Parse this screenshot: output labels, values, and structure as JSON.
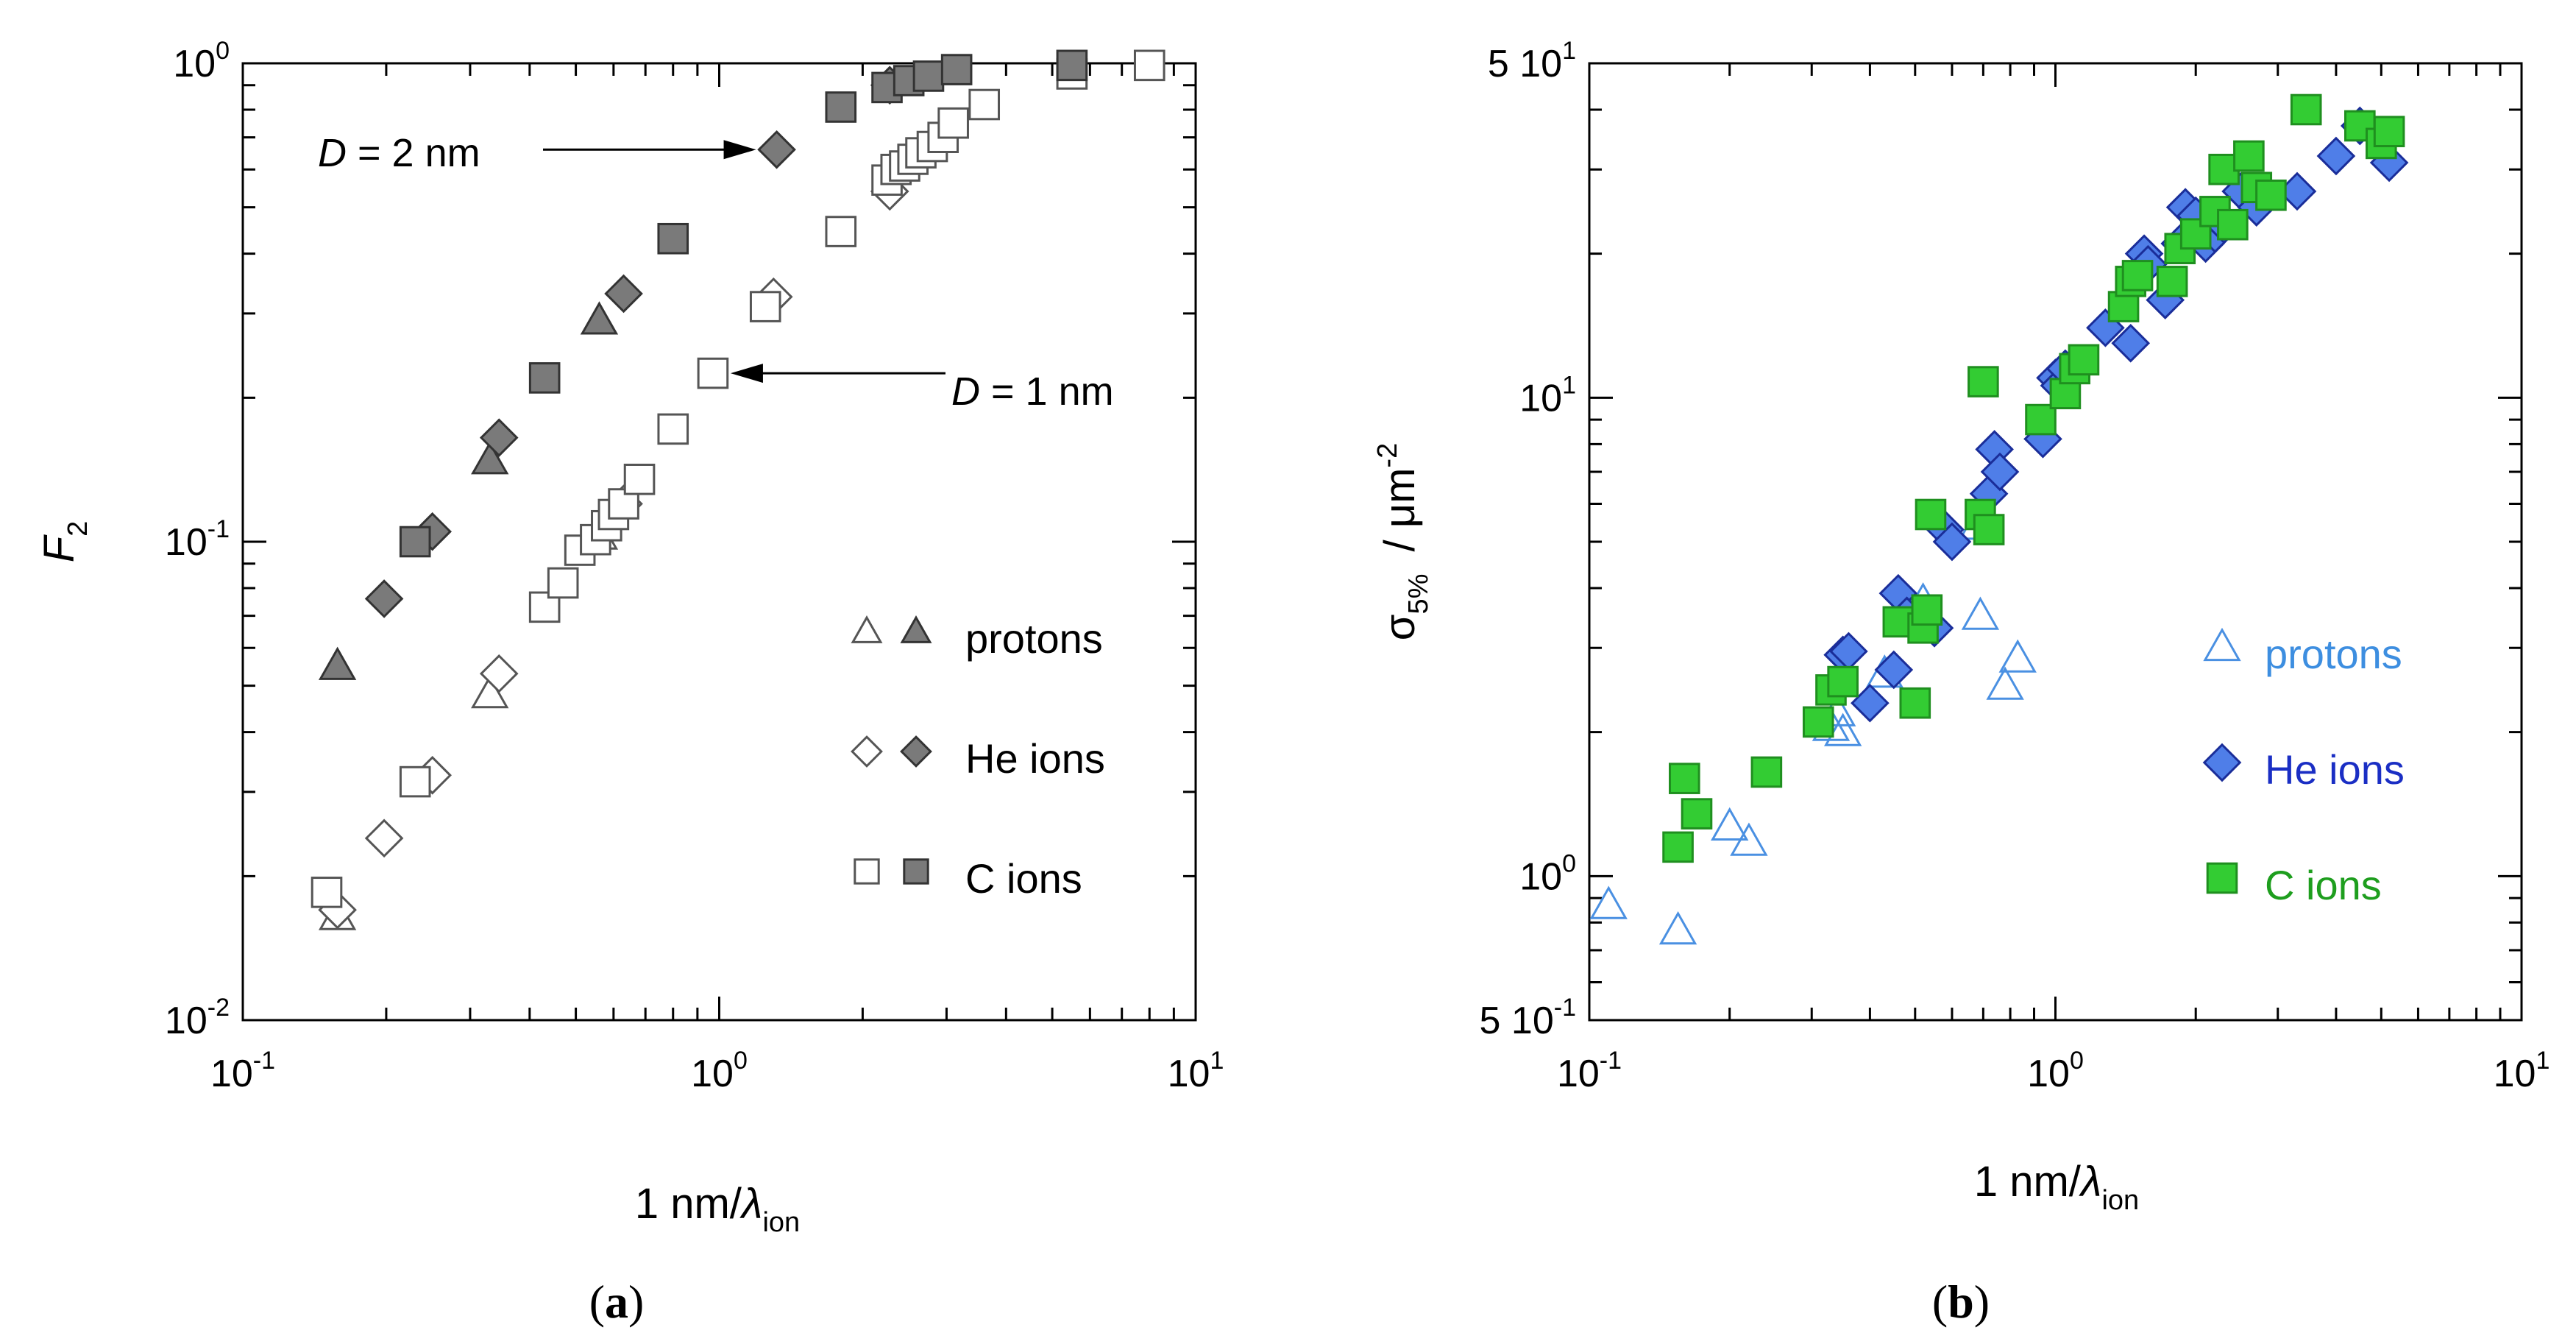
{
  "chart_data": [
    {
      "type": "scatter",
      "panel_label": "(a)",
      "panel_letter": "a",
      "xlabel": "1 nm/λ",
      "xlabel_main": "1 nm/",
      "xlabel_lambda": "λ",
      "xlabel_sub": "ion",
      "ylabel": "F",
      "ylabel_sub": "2",
      "xscale": "log",
      "yscale": "log",
      "xlim": [
        0.1,
        10
      ],
      "ylim": [
        0.01,
        1
      ],
      "x_ticks": [
        {
          "value": 0.1,
          "base": "10",
          "exp": "-1"
        },
        {
          "value": 1,
          "base": "10",
          "exp": "0"
        },
        {
          "value": 10,
          "base": "10",
          "exp": "1"
        }
      ],
      "y_ticks": [
        {
          "value": 0.01,
          "base": "10",
          "exp": "-2"
        },
        {
          "value": 0.1,
          "base": "10",
          "exp": "-1"
        },
        {
          "value": 1,
          "base": "10",
          "exp": "0"
        }
      ],
      "annotations": [
        {
          "italic": "D",
          "text": " = 2 nm",
          "point": [
            1.32,
            0.66
          ],
          "direction": "right"
        },
        {
          "italic": "D",
          "text": " = 1 nm",
          "point": [
            0.97,
            0.225
          ],
          "direction": "left"
        }
      ],
      "legend_position": "lower-right",
      "series": [
        {
          "name": "protons",
          "group": "D = 1 nm",
          "marker": "triangle",
          "fill": "#ffffff",
          "stroke": "#555555",
          "x": [
            0.158,
            0.33,
            0.56
          ],
          "y": [
            0.0165,
            0.048,
            0.103
          ]
        },
        {
          "name": "protons",
          "group": "D = 2 nm",
          "marker": "triangle",
          "fill": "#7a7a7a",
          "stroke": "#333333",
          "x": [
            0.158,
            0.33,
            0.56
          ],
          "y": [
            0.055,
            0.148,
            0.29
          ]
        },
        {
          "name": "He ions",
          "group": "D = 1 nm",
          "marker": "diamond",
          "fill": "#ffffff",
          "stroke": "#555555",
          "x": [
            0.158,
            0.198,
            0.25,
            0.345,
            0.63,
            1.3,
            2.28
          ],
          "y": [
            0.017,
            0.024,
            0.0325,
            0.053,
            0.12,
            0.325,
            0.54
          ]
        },
        {
          "name": "He ions",
          "group": "D = 2 nm",
          "marker": "diamond",
          "fill": "#7a7a7a",
          "stroke": "#333333",
          "x": [
            0.198,
            0.25,
            0.345,
            0.63,
            1.32,
            2.28
          ],
          "y": [
            0.076,
            0.105,
            0.165,
            0.33,
            0.66,
            0.9
          ]
        },
        {
          "name": "C ions",
          "group": "D = 1 nm",
          "marker": "square",
          "fill": "#ffffff",
          "stroke": "#555555",
          "x": [
            0.15,
            0.23,
            0.43,
            0.47,
            0.51,
            0.55,
            0.58,
            0.6,
            0.63,
            0.68,
            0.8,
            0.97,
            1.25,
            1.8,
            2.25,
            2.35,
            2.45,
            2.55,
            2.65,
            2.8,
            2.95,
            3.1,
            3.6,
            5.5,
            8.0
          ],
          "y": [
            0.0185,
            0.0315,
            0.073,
            0.082,
            0.096,
            0.101,
            0.108,
            0.114,
            0.12,
            0.135,
            0.172,
            0.225,
            0.31,
            0.445,
            0.57,
            0.6,
            0.61,
            0.63,
            0.65,
            0.67,
            0.7,
            0.75,
            0.82,
            0.95,
            0.99
          ]
        },
        {
          "name": "C ions",
          "group": "D = 2 nm",
          "marker": "square",
          "fill": "#7a7a7a",
          "stroke": "#333333",
          "x": [
            0.23,
            0.43,
            0.8,
            1.8,
            2.25,
            2.5,
            2.75,
            3.15,
            5.5
          ],
          "y": [
            0.1,
            0.22,
            0.43,
            0.81,
            0.89,
            0.92,
            0.94,
            0.97,
            0.99
          ]
        }
      ],
      "legend": [
        {
          "label": "protons",
          "marker": "triangle"
        },
        {
          "label": "He ions",
          "marker": "diamond"
        },
        {
          "label": "C ions",
          "marker": "square"
        }
      ]
    },
    {
      "type": "scatter",
      "panel_label": "(b)",
      "panel_letter": "b",
      "xlabel": "1 nm/λ",
      "xlabel_main": "1 nm/",
      "xlabel_lambda": "λ",
      "xlabel_sub": "ion",
      "ylabel": "σ5% / μm-2",
      "ylabel_sigma": "σ",
      "ylabel_sub": "5%",
      "ylabel_unit": "/  μm",
      "ylabel_unit_exp": "-2",
      "xscale": "log",
      "yscale": "log",
      "xlim": [
        0.1,
        10
      ],
      "ylim": [
        0.5,
        50
      ],
      "x_ticks": [
        {
          "value": 0.1,
          "base": "10",
          "exp": "-1"
        },
        {
          "value": 1,
          "base": "10",
          "exp": "0"
        },
        {
          "value": 10,
          "base": "10",
          "exp": "1"
        }
      ],
      "y_ticks": [
        {
          "value": 0.5,
          "base": "5 10",
          "exp": "-1"
        },
        {
          "value": 1,
          "base": "10",
          "exp": "0"
        },
        {
          "value": 10,
          "base": "10",
          "exp": "1"
        },
        {
          "value": 50,
          "base": "5 10",
          "exp": "1"
        }
      ],
      "legend_position": "lower-right",
      "series": [
        {
          "name": "protons",
          "marker": "triangle-open",
          "fill": "none",
          "stroke": "#4a90e2",
          "x": [
            0.11,
            0.155,
            0.2,
            0.22,
            0.33,
            0.34,
            0.35,
            0.43,
            0.5,
            0.52,
            0.68,
            0.69,
            0.78,
            0.83
          ],
          "y": [
            0.87,
            0.77,
            1.27,
            1.18,
            2.05,
            2.2,
            2.0,
            2.65,
            3.6,
            3.75,
            5.4,
            3.5,
            2.5,
            2.85
          ]
        },
        {
          "name": "He ions",
          "marker": "diamond",
          "fill": "#4f7ee8",
          "stroke": "#1a2d99",
          "x": [
            0.35,
            0.36,
            0.4,
            0.45,
            0.46,
            0.48,
            0.55,
            0.58,
            0.6,
            0.72,
            0.74,
            0.76,
            0.94,
            1.0,
            1.02,
            1.05,
            1.28,
            1.45,
            1.55,
            1.58,
            1.72,
            1.85,
            1.9,
            2.0,
            2.1,
            2.2,
            2.3,
            2.5,
            2.7,
            3.3,
            4.0,
            4.5,
            5.2
          ],
          "y": [
            2.9,
            2.95,
            2.3,
            2.7,
            3.9,
            3.5,
            3.3,
            5.3,
            5.0,
            6.3,
            7.8,
            7.0,
            8.2,
            11.0,
            10.6,
            11.5,
            14.0,
            13.0,
            20.0,
            19.0,
            16.0,
            21.0,
            25.0,
            24.0,
            21.0,
            22.0,
            23.0,
            27.0,
            25.0,
            27.0,
            32.0,
            37.0,
            31.0
          ]
        },
        {
          "name": "C ions",
          "marker": "square",
          "fill": "#33cc33",
          "stroke": "#1f8f1f",
          "x": [
            0.155,
            0.16,
            0.17,
            0.24,
            0.31,
            0.33,
            0.35,
            0.46,
            0.5,
            0.52,
            0.53,
            0.54,
            0.69,
            0.7,
            0.72,
            0.93,
            1.05,
            1.1,
            1.15,
            1.4,
            1.45,
            1.5,
            1.78,
            1.85,
            2.0,
            2.2,
            2.3,
            2.4,
            2.6,
            2.7,
            2.9,
            3.45,
            4.5,
            5.0,
            5.2
          ],
          "y": [
            1.15,
            1.6,
            1.35,
            1.65,
            2.1,
            2.45,
            2.55,
            3.4,
            2.3,
            3.3,
            3.6,
            5.7,
            5.7,
            10.8,
            5.3,
            9.0,
            10.2,
            11.5,
            12.0,
            15.5,
            17.5,
            18.0,
            17.5,
            20.5,
            22.0,
            24.5,
            30.0,
            23.0,
            32.0,
            27.5,
            26.5,
            40.0,
            37.0,
            34.0,
            36.0
          ]
        }
      ],
      "legend": [
        {
          "label": "protons",
          "marker": "triangle-open",
          "color": "#3d8ee0"
        },
        {
          "label": "He ions",
          "marker": "diamond",
          "color": "#1a2ec4"
        },
        {
          "label": "C ions",
          "marker": "square",
          "color": "#1e9e1e"
        }
      ]
    }
  ]
}
